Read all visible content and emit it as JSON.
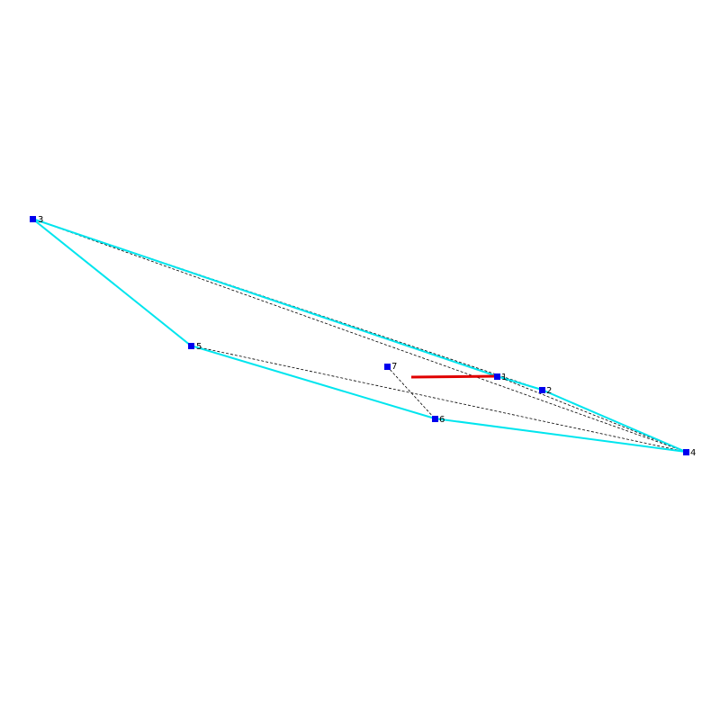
{
  "nodes": [
    {
      "label": "3"
    },
    {
      "label": "5"
    },
    {
      "label": "7"
    },
    {
      "label": "1"
    },
    {
      "label": "2"
    },
    {
      "label": "6"
    },
    {
      "label": "4"
    }
  ]
}
